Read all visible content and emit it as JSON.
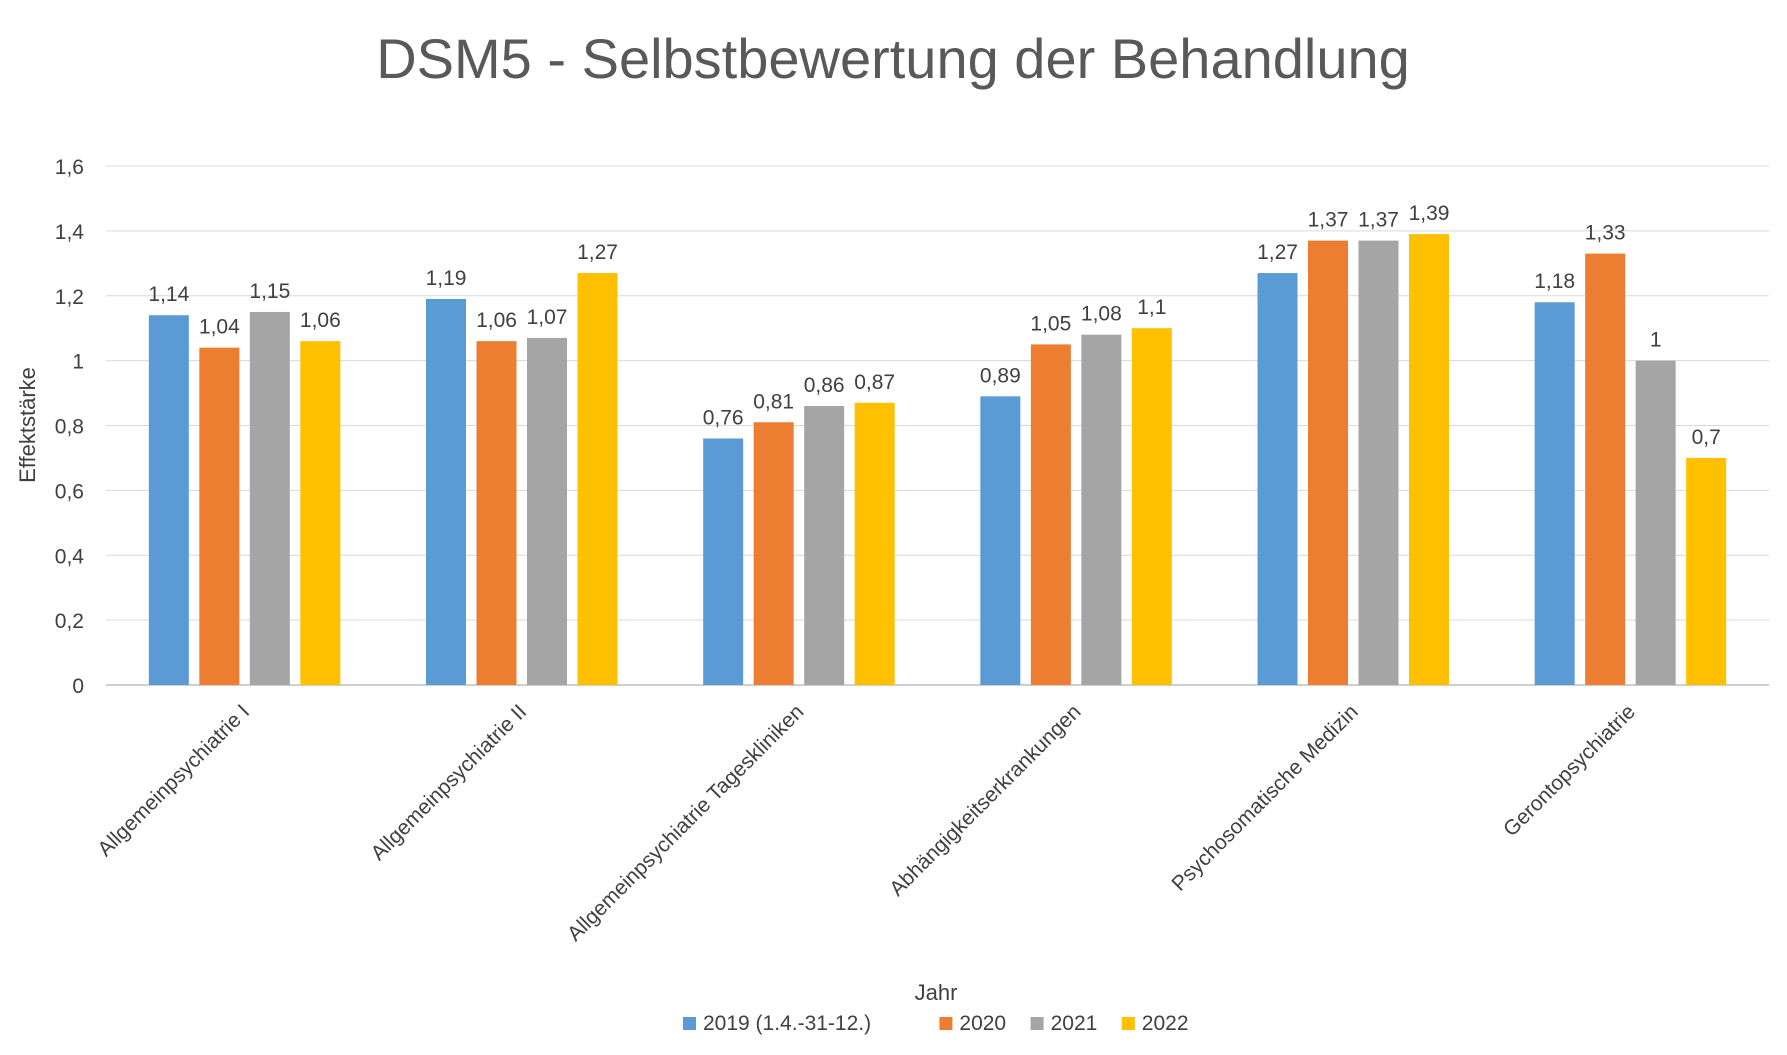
{
  "chart_data": {
    "type": "bar",
    "title": "DSM5 - Selbstbewertung der Behandlung",
    "xlabel": "",
    "ylabel": "Effektstärke",
    "ylim": [
      0,
      1.6
    ],
    "yticks": [
      "0",
      "0,2",
      "0,4",
      "0,6",
      "0,8",
      "1",
      "1,2",
      "1,4",
      "1,6"
    ],
    "ytick_values": [
      0,
      0.2,
      0.4,
      0.6,
      0.8,
      1.0,
      1.2,
      1.4,
      1.6
    ],
    "grid": true,
    "legend_title": "Jahr",
    "legend_position": "bottom",
    "categories": [
      "Allgemeinpsychiatrie I",
      "Allgemeinpsychiatrie II",
      "Allgemeinpsychiatrie Tageskliniken",
      "Abhängigkeitserkrankungen",
      "Psychosomatische Medizin",
      "Gerontopsychiatrie"
    ],
    "series": [
      {
        "name": "2019 (1.4.-31-12.)",
        "color": "#5B9BD5",
        "values": [
          1.14,
          1.19,
          0.76,
          0.89,
          1.27,
          1.18
        ],
        "labels": [
          "1,14",
          "1,19",
          "0,76",
          "0,89",
          "1,27",
          "1,18"
        ]
      },
      {
        "name": "2020",
        "color": "#ED7D31",
        "values": [
          1.04,
          1.06,
          0.81,
          1.05,
          1.37,
          1.33
        ],
        "labels": [
          "1,04",
          "1,06",
          "0,81",
          "1,05",
          "1,37",
          "1,33"
        ]
      },
      {
        "name": "2021",
        "color": "#A5A5A5",
        "values": [
          1.15,
          1.07,
          0.86,
          1.08,
          1.37,
          1.0
        ],
        "labels": [
          "1,15",
          "1,07",
          "0,86",
          "1,08",
          "1,37",
          "1"
        ]
      },
      {
        "name": "2022",
        "color": "#FFC000",
        "values": [
          1.06,
          1.27,
          0.87,
          1.1,
          1.39,
          0.7
        ],
        "labels": [
          "1,06",
          "1,27",
          "0,87",
          "1,1",
          "1,39",
          "0,7"
        ]
      }
    ]
  }
}
